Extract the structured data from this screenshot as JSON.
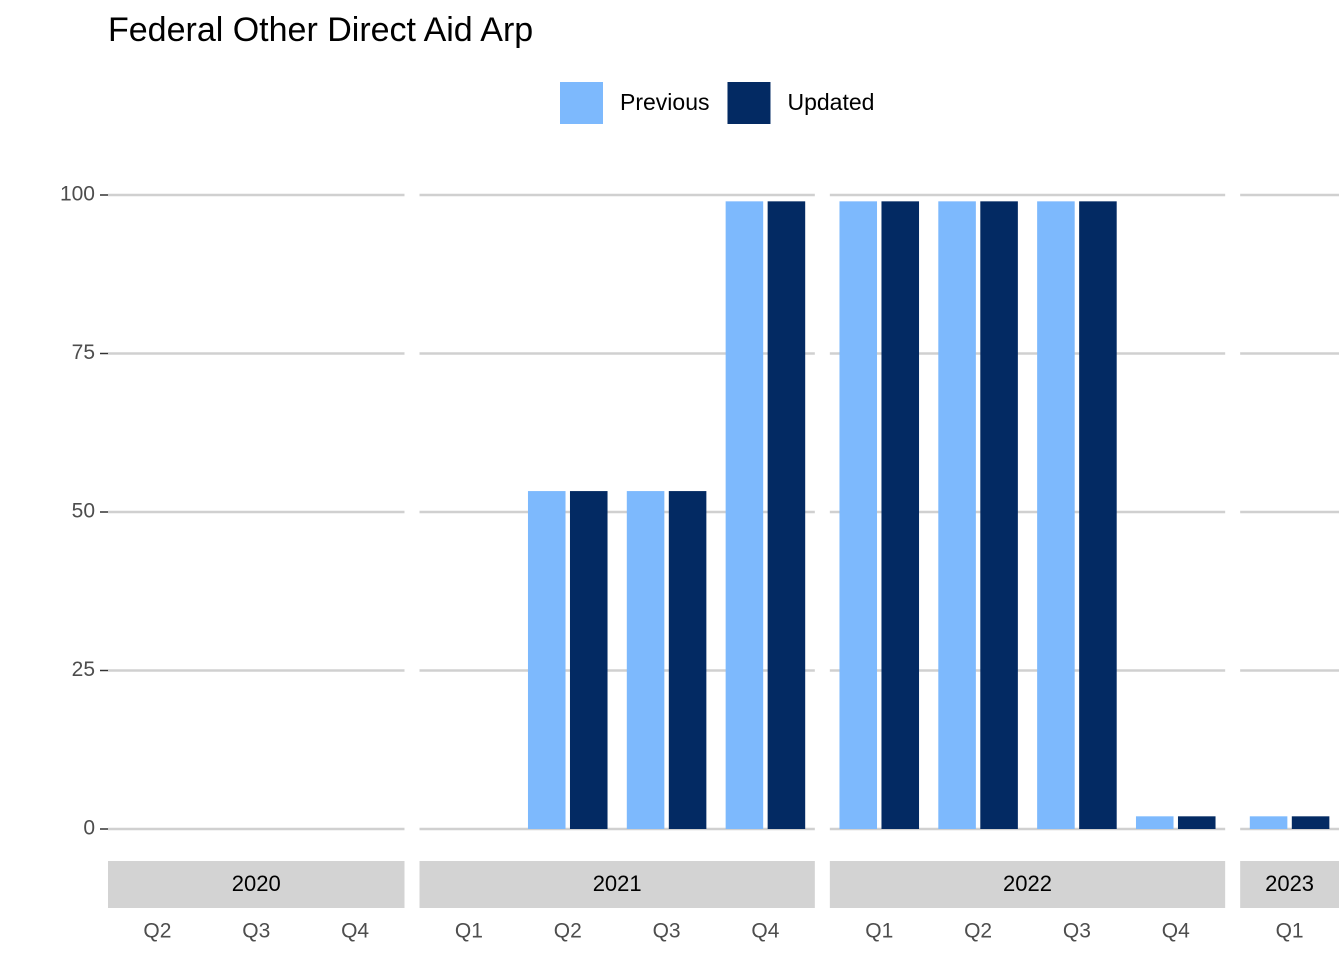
{
  "chart_data": {
    "type": "bar",
    "title": "Federal Other Direct Aid Arp",
    "series": [
      {
        "name": "Previous",
        "color": "#7db9fd"
      },
      {
        "name": "Updated",
        "color": "#032a63"
      }
    ],
    "ylim": [
      0,
      100
    ],
    "yticks": [
      0,
      25,
      50,
      75,
      100
    ],
    "grid": true,
    "legend": "top",
    "facets": [
      {
        "label": "2020",
        "categories": [
          "Q2",
          "Q3",
          "Q4"
        ],
        "values": [
          [
            0,
            0,
            0
          ],
          [
            0,
            0,
            0
          ]
        ]
      },
      {
        "label": "2021",
        "categories": [
          "Q1",
          "Q2",
          "Q3",
          "Q4"
        ],
        "values": [
          [
            0,
            53.3,
            53.3,
            99
          ],
          [
            0,
            53.3,
            53.3,
            99
          ]
        ]
      },
      {
        "label": "2022",
        "categories": [
          "Q1",
          "Q2",
          "Q3",
          "Q4"
        ],
        "values": [
          [
            99,
            99,
            99,
            2
          ],
          [
            99,
            99,
            99,
            2
          ]
        ]
      },
      {
        "label": "2023",
        "categories": [
          "Q1"
        ],
        "values": [
          [
            2
          ],
          [
            2
          ]
        ]
      }
    ]
  }
}
